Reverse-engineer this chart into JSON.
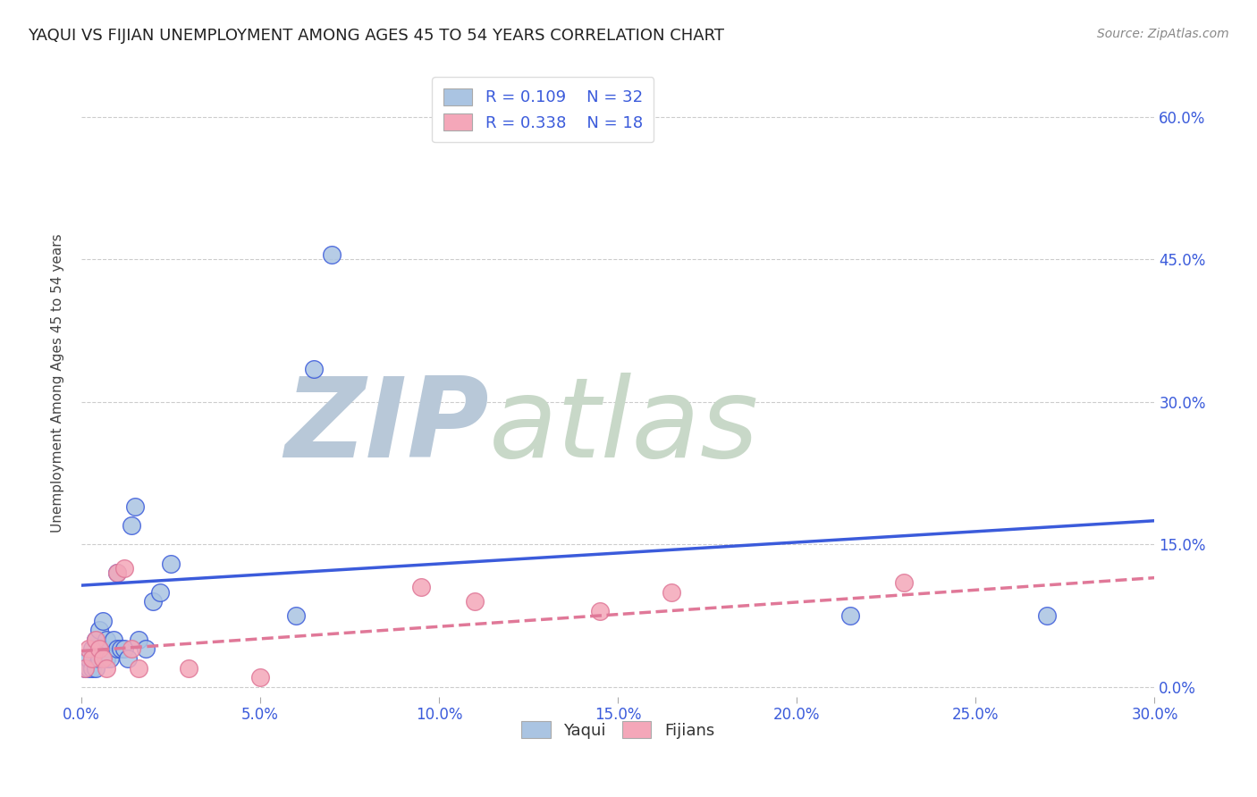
{
  "title": "YAQUI VS FIJIAN UNEMPLOYMENT AMONG AGES 45 TO 54 YEARS CORRELATION CHART",
  "source": "Source: ZipAtlas.com",
  "ylabel": "Unemployment Among Ages 45 to 54 years",
  "xlim": [
    0.0,
    0.3
  ],
  "ylim": [
    -0.01,
    0.65
  ],
  "yaqui_R": "0.109",
  "yaqui_N": "32",
  "fijian_R": "0.338",
  "fijian_N": "18",
  "legend_labels": [
    "Yaqui",
    "Fijians"
  ],
  "yaqui_color": "#aac4e2",
  "fijian_color": "#f4a7b9",
  "yaqui_line_color": "#3b5bdb",
  "fijian_line_color": "#e07898",
  "background_color": "#ffffff",
  "grid_color": "#cccccc",
  "watermark_ZIP_color": "#b8c8d8",
  "watermark_atlas_color": "#c8d8c8",
  "yaqui_x": [
    0.001,
    0.002,
    0.002,
    0.003,
    0.003,
    0.004,
    0.004,
    0.005,
    0.005,
    0.006,
    0.006,
    0.007,
    0.007,
    0.008,
    0.009,
    0.01,
    0.01,
    0.011,
    0.012,
    0.013,
    0.014,
    0.015,
    0.016,
    0.018,
    0.02,
    0.022,
    0.025,
    0.06,
    0.065,
    0.07,
    0.215,
    0.27
  ],
  "yaqui_y": [
    0.02,
    0.02,
    0.03,
    0.02,
    0.04,
    0.02,
    0.05,
    0.03,
    0.06,
    0.04,
    0.07,
    0.03,
    0.05,
    0.03,
    0.05,
    0.04,
    0.12,
    0.04,
    0.04,
    0.03,
    0.17,
    0.19,
    0.05,
    0.04,
    0.09,
    0.1,
    0.13,
    0.075,
    0.335,
    0.455,
    0.075,
    0.075
  ],
  "fijian_x": [
    0.001,
    0.002,
    0.003,
    0.004,
    0.005,
    0.006,
    0.007,
    0.01,
    0.012,
    0.014,
    0.016,
    0.03,
    0.05,
    0.095,
    0.11,
    0.145,
    0.165,
    0.23
  ],
  "fijian_y": [
    0.02,
    0.04,
    0.03,
    0.05,
    0.04,
    0.03,
    0.02,
    0.12,
    0.125,
    0.04,
    0.02,
    0.02,
    0.01,
    0.105,
    0.09,
    0.08,
    0.1,
    0.11
  ],
  "yaqui_line_x": [
    0.0,
    0.3
  ],
  "yaqui_line_y": [
    0.107,
    0.175
  ],
  "fijian_line_x": [
    0.0,
    0.3
  ],
  "fijian_line_y": [
    0.038,
    0.115
  ],
  "x_tick_vals": [
    0.0,
    0.05,
    0.1,
    0.15,
    0.2,
    0.25,
    0.3
  ],
  "y_tick_vals": [
    0.0,
    0.15,
    0.3,
    0.45,
    0.6
  ],
  "title_fontsize": 13,
  "tick_fontsize": 12,
  "legend_fontsize": 13
}
